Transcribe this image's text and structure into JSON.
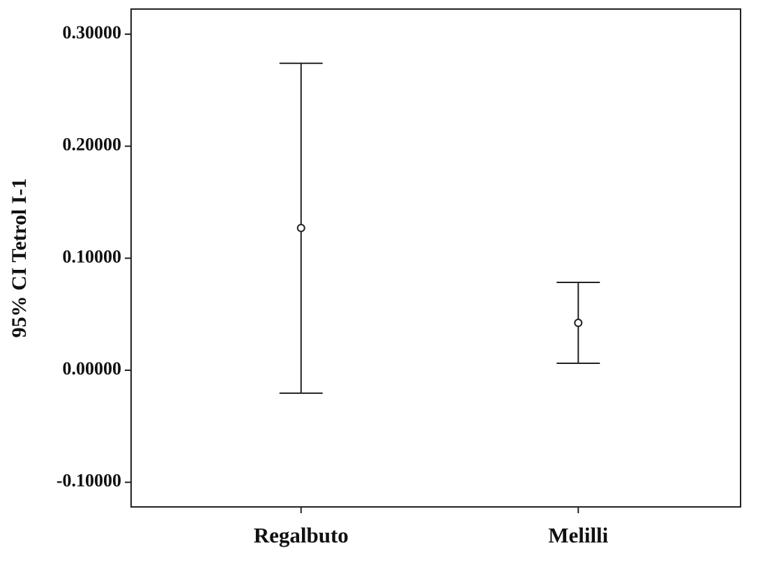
{
  "chart_data": {
    "type": "errorbar",
    "y_label": "95% CI Tetrol I-1",
    "categories": [
      "Regalbuto",
      "Melilli"
    ],
    "values": [
      0.127,
      0.0423
    ],
    "lower": [
      -0.0205,
      0.0062
    ],
    "upper": [
      0.274,
      0.0784
    ],
    "color": "#222222",
    "ylim": [
      -0.122,
      0.3224
    ],
    "yticks": [
      {
        "value": -0.1,
        "label": "-0.10000"
      },
      {
        "value": 0,
        "label": "0.00000"
      },
      {
        "value": 0.1,
        "label": "0.10000"
      },
      {
        "value": 0.2,
        "label": "0.20000"
      },
      {
        "value": 0.3,
        "label": "0.30000"
      }
    ],
    "grid": false
  }
}
